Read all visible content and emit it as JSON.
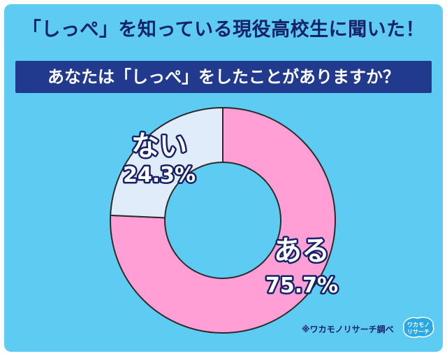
{
  "header": {
    "title": "「しっぺ」を知っている現役高校生に聞いた！",
    "question": "あなたは「しっぺ」をしたことがありますか？"
  },
  "chart_data": {
    "type": "pie",
    "style": "donut",
    "title": "「しっぺ」を知っている現役高校生に聞いた！",
    "subtitle": "あなたは「しっぺ」をしたことがありますか？",
    "slices": [
      {
        "label": "ある",
        "value": 75.7,
        "value_label": "75.7%",
        "color": "#ff9fd6"
      },
      {
        "label": "ない",
        "value": 24.3,
        "value_label": "24.3%",
        "color": "#e1ecfb"
      }
    ],
    "start_angle": "top",
    "direction": "clockwise"
  },
  "footer": {
    "credit": "※ワカモノリサーチ調べ",
    "logo_text": "ワカモノ リサーチ"
  },
  "colors": {
    "background": "#5ecbf2",
    "banner": "#213a8d",
    "title_text": "#15216b",
    "stroke": "#2b2b2b"
  }
}
